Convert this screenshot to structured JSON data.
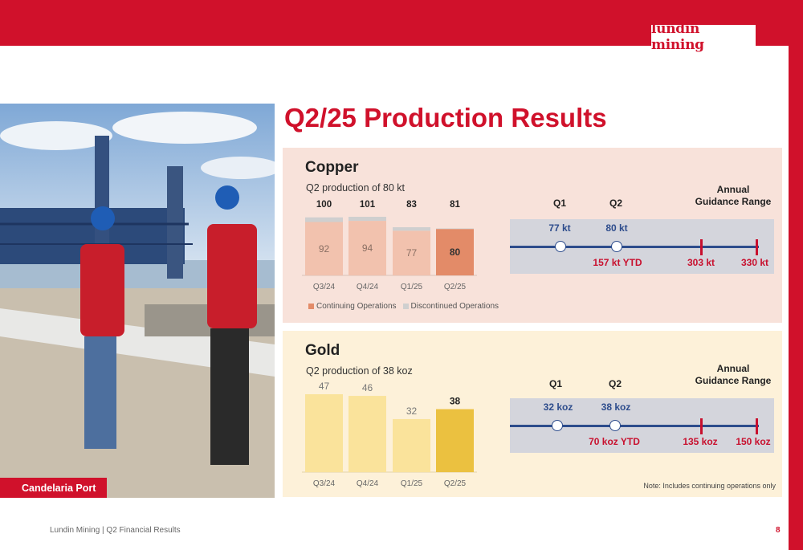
{
  "brand": {
    "logo_text": "lundin mining",
    "accent_color": "#d0112b"
  },
  "title": "Q2/25 Production Results",
  "photo": {
    "caption": "Candelaria Port"
  },
  "copper": {
    "title": "Copper",
    "subtitle": "Q2 production of 80 kt",
    "legend": {
      "continuing": "Continuing Operations",
      "discontinued": "Discontinued Operations"
    },
    "timeline": {
      "q1_head": "Q1",
      "q2_head": "Q2",
      "range_head_1": "Annual",
      "range_head_2": "Guidance Range",
      "q1_value": "77 kt",
      "q2_value": "80 kt",
      "ytd": "157 kt YTD",
      "low": "303 kt",
      "high": "330 kt"
    }
  },
  "gold": {
    "title": "Gold",
    "subtitle": "Q2 production of 38 koz",
    "note": "Note: Includes continuing operations only",
    "timeline": {
      "q1_head": "Q1",
      "q2_head": "Q2",
      "range_head_1": "Annual",
      "range_head_2": "Guidance Range",
      "q1_value": "32 koz",
      "q2_value": "38 koz",
      "ytd": "70 koz YTD",
      "low": "135 koz",
      "high": "150 koz"
    }
  },
  "chart_data": [
    {
      "type": "bar",
      "title": "Copper",
      "stacked": true,
      "categories": [
        "Q3/24",
        "Q4/24",
        "Q1/25",
        "Q2/25"
      ],
      "series": [
        {
          "name": "Continuing Operations",
          "values": [
            92,
            94,
            77,
            80
          ]
        },
        {
          "name": "Discontinued Operations",
          "values": [
            8,
            7,
            6,
            1
          ]
        }
      ],
      "totals": [
        100,
        101,
        83,
        81
      ],
      "colors": {
        "continuing": "#f2c2ae",
        "continuing_highlight": "#e38b68",
        "discontinued": "#cfcfcf"
      },
      "highlight_index": 3,
      "ylim": [
        0,
        101
      ]
    },
    {
      "type": "bar",
      "title": "Gold",
      "categories": [
        "Q3/24",
        "Q4/24",
        "Q1/25",
        "Q2/25"
      ],
      "values": [
        47,
        46,
        32,
        38
      ],
      "colors": {
        "bar": "#fae39b",
        "highlight": "#ebc140"
      },
      "highlight_index": 3,
      "ylim": [
        0,
        47
      ]
    }
  ],
  "footer": {
    "text": "Lundin Mining | Q2 Financial Results",
    "page": "8"
  }
}
